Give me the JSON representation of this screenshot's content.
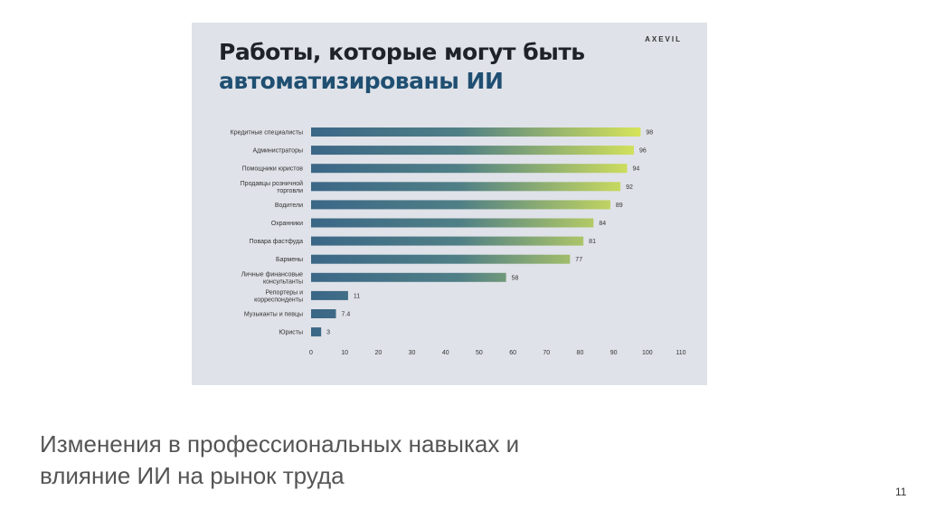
{
  "chart_data": {
    "type": "bar",
    "orientation": "horizontal",
    "title": "Работы, которые могут быть",
    "title_highlight": "автоматизированы ИИ",
    "brand": "AXEVIL",
    "categories": [
      "Кредитные специалисты",
      "Администраторы",
      "Помощники юристов",
      "Продавцы розничной торговли",
      "Водители",
      "Охранники",
      "Повара фастфуда",
      "Бармены",
      "Личные финансовые консультанты",
      "Репортеры и корреспонденты",
      "Музыканты и певцы",
      "Юристы"
    ],
    "values": [
      98,
      96,
      94,
      92,
      89,
      84,
      81,
      77,
      58,
      11,
      7.4,
      3
    ],
    "xlim": [
      0,
      110
    ],
    "xticks": [
      0,
      10,
      20,
      30,
      40,
      50,
      60,
      70,
      80,
      90,
      100,
      110
    ],
    "grid": false,
    "colors": {
      "start": "#3b6787",
      "end": "#d6e45a"
    }
  },
  "slide": {
    "caption_line1": "Изменения в профессиональных навыках и",
    "caption_line2": "влияние ИИ на рынок труда",
    "page_number": "11"
  }
}
